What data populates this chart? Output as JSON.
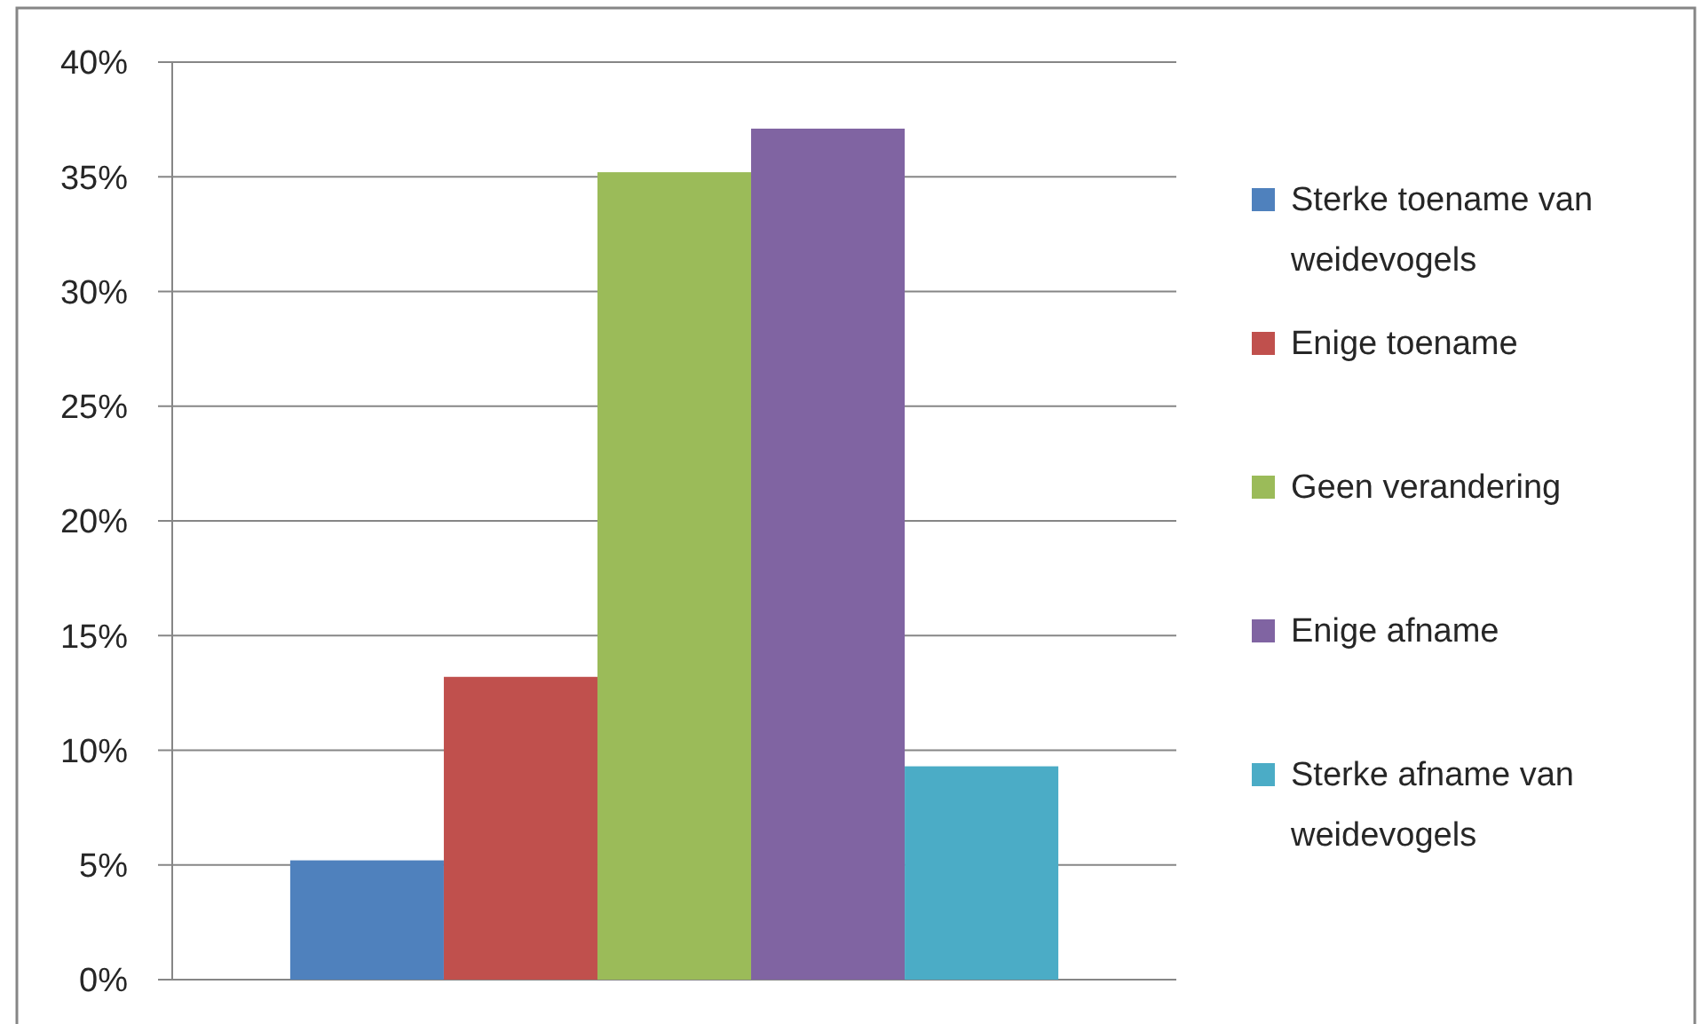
{
  "chart_data": {
    "type": "bar",
    "categories": [
      null
    ],
    "series": [
      {
        "name": "Sterke toename van weidevogels",
        "color": "#4f81bd",
        "values": [
          5.2
        ]
      },
      {
        "name": "Enige toename",
        "color": "#c0504d",
        "values": [
          13.2
        ]
      },
      {
        "name": "Geen verandering",
        "color": "#9bbb59",
        "values": [
          35.2
        ]
      },
      {
        "name": "Enige afname",
        "color": "#8064a2",
        "values": [
          37.1
        ]
      },
      {
        "name": "Sterke afname van weidevogels",
        "color": "#4bacc6",
        "values": [
          9.3
        ]
      }
    ],
    "ylim": [
      0,
      40
    ],
    "yticks": [
      {
        "value": 0,
        "label": "0%"
      },
      {
        "value": 5,
        "label": "5%"
      },
      {
        "value": 10,
        "label": "10%"
      },
      {
        "value": 15,
        "label": "15%"
      },
      {
        "value": 20,
        "label": "20%"
      },
      {
        "value": 25,
        "label": "25%"
      },
      {
        "value": 30,
        "label": "30%"
      },
      {
        "value": 35,
        "label": "35%"
      },
      {
        "value": 40,
        "label": "40%"
      }
    ],
    "grid": "y",
    "legend": "right"
  }
}
